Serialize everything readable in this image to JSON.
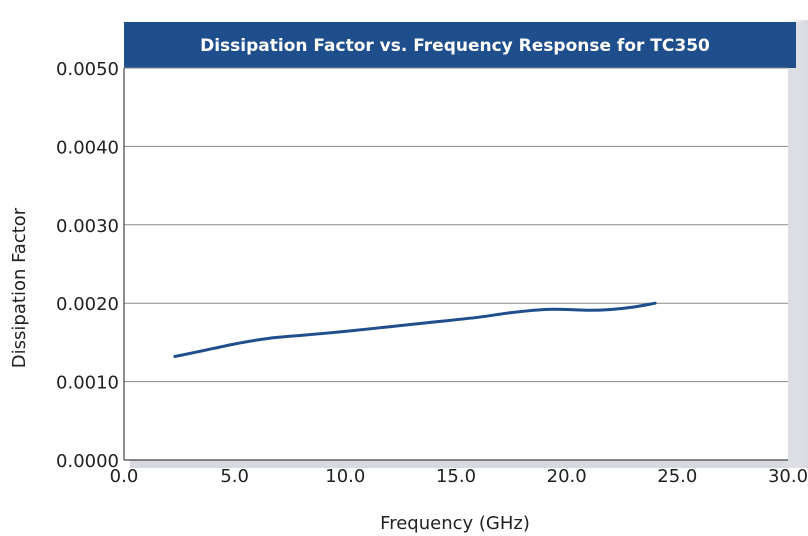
{
  "chart_data": {
    "type": "line",
    "title": "Dissipation Factor vs. Frequency Response for TC350",
    "xlabel": "Frequency (GHz)",
    "ylabel": "Dissipation Factor",
    "xlim": [
      0,
      30
    ],
    "ylim": [
      0,
      0.005
    ],
    "x_ticks": [
      "0.0",
      "5.0",
      "10.0",
      "15.0",
      "20.0",
      "25.0",
      "30.0"
    ],
    "y_ticks": [
      "0.0000",
      "0.0010",
      "0.0020",
      "0.0030",
      "0.0040",
      "0.0050"
    ],
    "grid": true,
    "legend": "none",
    "series": [
      {
        "color": "#1f4e8c",
        "x": [
          2.3,
          3.5,
          5.0,
          6.5,
          8.0,
          10.0,
          12.0,
          14.0,
          16.0,
          17.5,
          19.0,
          20.0,
          21.0,
          22.0,
          23.0,
          24.0
        ],
        "y": [
          0.00132,
          0.00139,
          0.00148,
          0.00155,
          0.00159,
          0.00164,
          0.0017,
          0.00176,
          0.00182,
          0.00188,
          0.00192,
          0.00192,
          0.00191,
          0.00192,
          0.00195,
          0.002
        ]
      }
    ]
  },
  "colors": {
    "title_bar": "#1f4e8c",
    "line": "#1f4e8c",
    "gridline": "#8a8a8a",
    "panel_shadow": "#c8ccd2"
  }
}
